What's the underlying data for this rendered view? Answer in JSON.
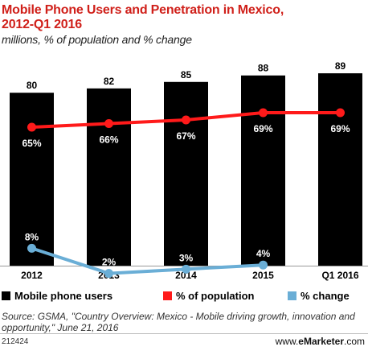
{
  "header": {
    "title_line1": "Mobile Phone Users and Penetration in Mexico,",
    "title_line2": "2012-Q1 2016",
    "subtitle": "millions, % of population and % change"
  },
  "legend": {
    "users": "Mobile phone users",
    "population": "% of population",
    "change": "% change"
  },
  "source": "Source: GSMA, \"Country Overview: Mexico - Mobile driving growth, innovation and opportunity,\" June 21, 2016",
  "footer": {
    "chart_id": "212424",
    "brand_prefix": "www.",
    "brand_bold": "eMarketer",
    "brand_suffix": ".com"
  },
  "colors": {
    "bars": "#000000",
    "population": "#ff1a1a",
    "change": "#6aaed6",
    "title": "#d0201a"
  },
  "chart_data": {
    "type": "bar",
    "categories": [
      "2012",
      "2013",
      "2014",
      "2015",
      "Q1 2016"
    ],
    "series": [
      {
        "name": "Mobile phone users",
        "type": "bar",
        "values": [
          80,
          82,
          85,
          88,
          89
        ],
        "labels": [
          "80",
          "82",
          "85",
          "88",
          "89"
        ]
      },
      {
        "name": "% of population",
        "type": "line",
        "values": [
          65,
          66,
          67,
          69,
          69
        ],
        "labels": [
          "65%",
          "66%",
          "67%",
          "69%",
          "69%"
        ]
      },
      {
        "name": "% change",
        "type": "line",
        "values": [
          8,
          2,
          3,
          4,
          null
        ],
        "labels": [
          "8%",
          "2%",
          "3%",
          "4%",
          ""
        ]
      }
    ],
    "legend_position": "bottom",
    "grid": false
  }
}
